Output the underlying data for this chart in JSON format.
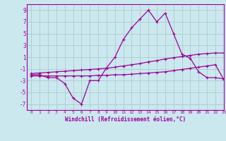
{
  "title": "",
  "xlabel": "Windchill (Refroidissement éolien,°C)",
  "background_color": "#cce8ef",
  "grid_color": "#aacccc",
  "line_color": "#990099",
  "x": [
    0,
    1,
    2,
    3,
    4,
    5,
    6,
    7,
    8,
    9,
    10,
    11,
    12,
    13,
    14,
    15,
    16,
    17,
    18,
    19,
    20,
    21,
    22,
    23
  ],
  "y_main": [
    -2.0,
    -2.0,
    -2.5,
    -2.5,
    -3.5,
    -6.0,
    -7.0,
    -3.0,
    -3.0,
    -0.8,
    1.0,
    4.0,
    6.0,
    7.5,
    9.0,
    7.0,
    8.5,
    5.0,
    1.5,
    0.8,
    -1.5,
    -2.5,
    -2.5,
    -2.7
  ],
  "y_upper": [
    -1.8,
    -1.7,
    -1.6,
    -1.5,
    -1.4,
    -1.3,
    -1.2,
    -1.1,
    -1.0,
    -0.9,
    -0.7,
    -0.5,
    -0.3,
    -0.1,
    0.2,
    0.4,
    0.7,
    0.9,
    1.1,
    1.3,
    1.5,
    1.6,
    1.7,
    1.7
  ],
  "y_lower": [
    -2.2,
    -2.2,
    -2.2,
    -2.2,
    -2.2,
    -2.2,
    -2.2,
    -2.2,
    -2.1,
    -2.1,
    -2.0,
    -2.0,
    -1.9,
    -1.8,
    -1.7,
    -1.6,
    -1.5,
    -1.3,
    -1.1,
    -0.9,
    -0.7,
    -0.5,
    -0.3,
    -2.8
  ],
  "ylim": [
    -8,
    10
  ],
  "xlim": [
    -0.5,
    23
  ],
  "yticks": [
    -7,
    -5,
    -3,
    -1,
    1,
    3,
    5,
    7,
    9
  ],
  "xticks": [
    0,
    1,
    2,
    3,
    4,
    5,
    6,
    7,
    8,
    9,
    10,
    11,
    12,
    13,
    14,
    15,
    16,
    17,
    18,
    19,
    20,
    21,
    22,
    23
  ]
}
